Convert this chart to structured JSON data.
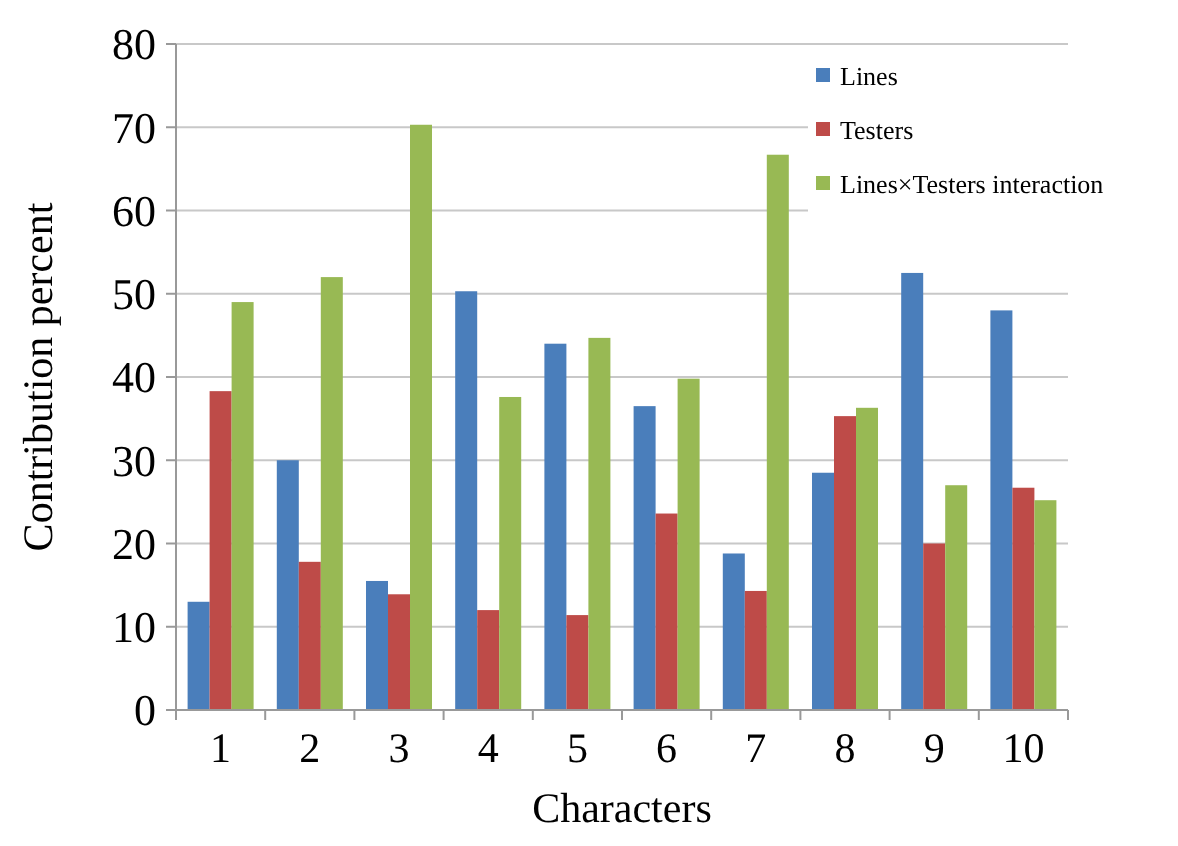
{
  "chart_data": {
    "type": "bar",
    "xlabel": "Characters",
    "ylabel": "Contribution percent",
    "categories": [
      "1",
      "2",
      "3",
      "4",
      "5",
      "6",
      "7",
      "8",
      "9",
      "10"
    ],
    "series": [
      {
        "name": "Lines",
        "color": "#4a7ebb",
        "values": [
          13,
          30,
          15.5,
          50.3,
          44,
          36.5,
          18.8,
          28.5,
          52.5,
          48
        ]
      },
      {
        "name": "Testers",
        "color": "#be4b48",
        "values": [
          38.3,
          17.8,
          13.9,
          12,
          11.4,
          23.6,
          14.3,
          35.3,
          20,
          26.7
        ]
      },
      {
        "name": "Lines×Testers interaction",
        "color": "#98b954",
        "values": [
          49,
          52,
          70.3,
          37.6,
          44.7,
          39.8,
          66.7,
          36.3,
          27,
          25.2
        ]
      }
    ],
    "ylim": [
      0,
      80
    ],
    "yticks": [
      0,
      10,
      20,
      30,
      40,
      50,
      60,
      70,
      80
    ],
    "grid": "y",
    "legend": "top right"
  }
}
